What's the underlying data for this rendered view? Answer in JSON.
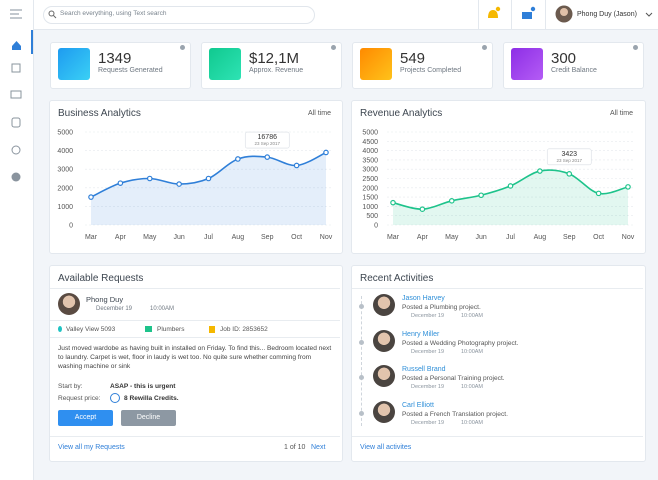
{
  "search_placeholder": "Search everything, using Text search",
  "user": {
    "name": "Phong Duy (Jason)"
  },
  "stats": [
    {
      "value": "1349",
      "label": "Requests Generated"
    },
    {
      "value": "$12,1M",
      "label": "Approx. Revenue"
    },
    {
      "value": "549",
      "label": "Projects Completed"
    },
    {
      "value": "300",
      "label": "Credit Balance"
    }
  ],
  "chart_data": [
    {
      "type": "line",
      "title": "Business Analytics",
      "filter": "All time",
      "categories": [
        "Mar",
        "Apr",
        "May",
        "Jun",
        "Jul",
        "Aug",
        "Sep",
        "Oct",
        "Nov"
      ],
      "values": [
        1500,
        2250,
        2500,
        2200,
        2500,
        3550,
        3650,
        3200,
        3900
      ],
      "color": "#2f7fd8",
      "ylim": [
        0,
        5000
      ],
      "yticks": [
        0,
        1000,
        2000,
        3000,
        4000,
        5000
      ],
      "grid": true,
      "annotation": {
        "value": "16786",
        "date": "23 Sep 2017"
      }
    },
    {
      "type": "line",
      "title": "Revenue Analytics",
      "filter": "All time",
      "categories": [
        "Mar",
        "Apr",
        "May",
        "Jun",
        "Jul",
        "Aug",
        "Sep",
        "Oct",
        "Nov"
      ],
      "values": [
        1200,
        850,
        1300,
        1600,
        2100,
        2900,
        2750,
        1700,
        2050
      ],
      "color": "#1ec38b",
      "ylim": [
        0,
        5000
      ],
      "yticks": [
        0,
        500,
        1000,
        1500,
        2000,
        2500,
        3000,
        3500,
        4000,
        4500,
        5000
      ],
      "grid": true,
      "annotation": {
        "value": "3423",
        "date": "23 Sep 2017"
      }
    }
  ],
  "requests": {
    "title": "Available Requests",
    "name": "Phong Duy",
    "date": "December 19",
    "time": "10:00AM",
    "location": "Valley View 5093",
    "category": "Plumbers",
    "job": "Job ID: 2853652",
    "description": "Just moved wardobe as having built in installed on Friday. To find this... Bedroom located next to laundry. Carpet is wet, floor in laudy is wet too. No quite sure whether comming from washing machine or sink",
    "start_label": "Start by:",
    "start_value": "ASAP - this is urgent",
    "price_label": "Request price:",
    "price_value": "8 Rewilla Credits.",
    "accept": "Accept",
    "decline": "Decline",
    "view_all": "View all my Requests",
    "pager": "1 of 10",
    "next": "Next"
  },
  "activities": {
    "title": "Recent Activities",
    "items": [
      {
        "name": "Jason Harvey",
        "text": "Posted a Plumbing project.",
        "date": "December 19",
        "time": "10:00AM"
      },
      {
        "name": "Henry Miller",
        "text": "Posted a Wedding Photography project.",
        "date": "December 19",
        "time": "10:00AM"
      },
      {
        "name": "Russell Brand",
        "text": "Posted a Personal Training project.",
        "date": "December 19",
        "time": "10:00AM"
      },
      {
        "name": "Carl Elliott",
        "text": "Posted a French Translation project.",
        "date": "December 19",
        "time": "10:00AM"
      }
    ],
    "view_all": "View all activites"
  }
}
